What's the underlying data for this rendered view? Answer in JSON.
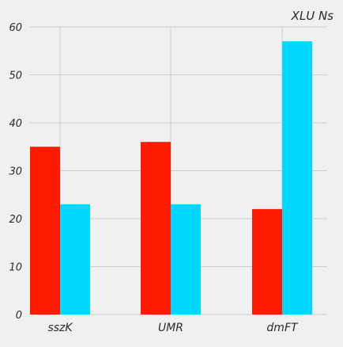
{
  "chart_data": {
    "type": "bar",
    "title": "XLU Ns",
    "xlabel": "",
    "ylabel": "",
    "categories": [
      "sszK",
      "UMR",
      "dmFT"
    ],
    "series": [
      {
        "values": [
          35,
          36,
          22
        ],
        "color": "#ff1a00"
      },
      {
        "values": [
          23,
          23,
          57
        ],
        "color": "#00d8ff"
      }
    ],
    "ylim": [
      0,
      60
    ],
    "yticks": [
      0,
      10,
      20,
      30,
      40,
      50,
      60
    ],
    "grid": true,
    "background": "#f0f0f0",
    "grid_color": "#cbcbcb"
  }
}
